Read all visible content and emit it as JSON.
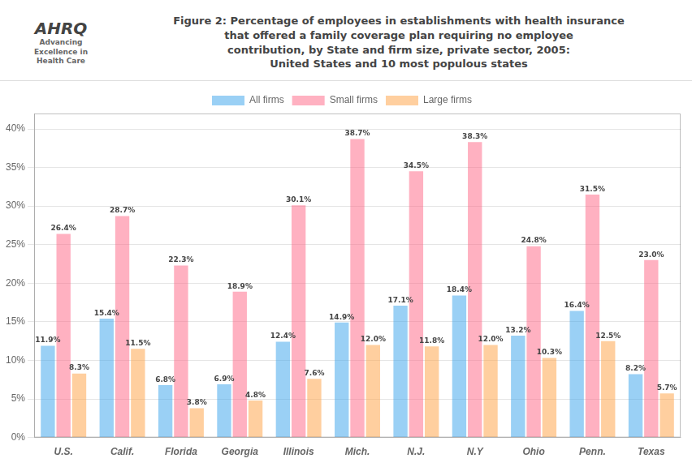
{
  "chart_data": {
    "type": "bar",
    "title": "Figure 2: Percentage of employees in establishments with health insurance\nthat offered a family coverage plan requiring no employee\ncontribution, by State and firm size,  private sector, 2005:\nUnited States and 10 most populous states",
    "annotations": [
      "AHRQ",
      "Advancing\nExcellence in\nHealth Care"
    ],
    "categories": [
      "U.S.",
      "Calif.",
      "Florida",
      "Georgia",
      "Illinois",
      "Mich.",
      "N.J.",
      "N.Y",
      "Ohio",
      "Penn.",
      "Texas"
    ],
    "series": [
      {
        "name": "All firms",
        "values": [
          11.9,
          15.4,
          6.8,
          6.9,
          12.4,
          14.9,
          17.1,
          18.4,
          13.2,
          16.4,
          8.2
        ],
        "value_labels": [
          "11.9%",
          "15.4%",
          "6.8%",
          "6.9%",
          "12.4%",
          "14.9%",
          "17.1%",
          "18.4%",
          "13.2%",
          "16.4%",
          "8.2%"
        ]
      },
      {
        "name": "Small firms",
        "values": [
          26.4,
          28.7,
          22.3,
          18.9,
          30.1,
          38.7,
          34.5,
          38.3,
          24.8,
          31.5,
          23.0
        ],
        "value_labels": [
          "26.4%",
          "28.7%",
          "22.3%",
          "18.9%",
          "30.1%",
          "38.7%",
          "34.5%",
          "38.3%",
          "24.8%",
          "31.5%",
          "23.0%"
        ]
      },
      {
        "name": "Large firms",
        "values": [
          8.3,
          11.5,
          3.8,
          4.8,
          7.6,
          12.0,
          11.8,
          12.0,
          10.3,
          12.5,
          5.7
        ],
        "value_labels": [
          "8.3%",
          "11.5%",
          "3.8%",
          "4.8%",
          "7.6%",
          "12.0%",
          "11.8%",
          "12.0%",
          "10.3%",
          "12.5%",
          "5.7%"
        ]
      }
    ],
    "ylim": [
      0,
      42
    ],
    "yticks": [
      {
        "value": 0,
        "label": "0%"
      },
      {
        "value": 5,
        "label": "5%"
      },
      {
        "value": 10,
        "label": "10%"
      },
      {
        "value": 15,
        "label": "15%"
      },
      {
        "value": 20,
        "label": "20%"
      },
      {
        "value": 25,
        "label": "25%"
      },
      {
        "value": 30,
        "label": "30%"
      },
      {
        "value": 35,
        "label": "35%"
      },
      {
        "value": 40,
        "label": "40%"
      }
    ],
    "grid": "y",
    "legend": "top",
    "data_labels": true
  }
}
